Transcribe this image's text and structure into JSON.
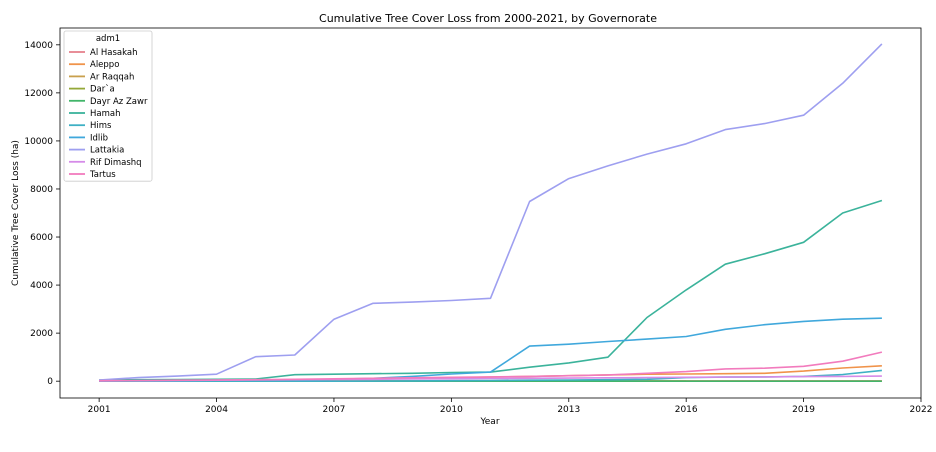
{
  "chart_data": {
    "type": "line",
    "title": "Cumulative Tree Cover Loss from 2000-2021, by Governorate",
    "xlabel": "Year",
    "ylabel": "Cumulative Tree Cover Loss (ha)",
    "xlim": [
      2000,
      2022
    ],
    "ylim": [
      -700,
      14700
    ],
    "xticks": [
      2001,
      2004,
      2007,
      2010,
      2013,
      2016,
      2019,
      2022
    ],
    "yticks": [
      0,
      2000,
      4000,
      6000,
      8000,
      10000,
      12000,
      14000
    ],
    "legend": {
      "title": "adm1",
      "position": "top-left"
    },
    "grid": false,
    "series": [
      {
        "name": "Al Hasakah",
        "color": "#e6818d",
        "x": [
          2001,
          2002,
          2003,
          2004,
          2005,
          2006,
          2007,
          2008,
          2009,
          2010,
          2011,
          2012,
          2013,
          2014,
          2015,
          2016,
          2017,
          2018,
          2019,
          2020,
          2021
        ],
        "y": [
          0,
          0,
          0,
          0,
          0,
          5,
          5,
          10,
          10,
          10,
          10,
          10,
          10,
          10,
          10,
          10,
          10,
          10,
          10,
          10,
          10
        ]
      },
      {
        "name": "Aleppo",
        "color": "#f0934a",
        "x": [
          2001,
          2002,
          2003,
          2004,
          2005,
          2006,
          2007,
          2008,
          2009,
          2010,
          2011,
          2012,
          2013,
          2014,
          2015,
          2016,
          2017,
          2018,
          2019,
          2020,
          2021
        ],
        "y": [
          5,
          10,
          15,
          20,
          30,
          50,
          70,
          90,
          110,
          140,
          170,
          200,
          230,
          260,
          290,
          300,
          310,
          330,
          420,
          550,
          640
        ]
      },
      {
        "name": "Ar Raqqah",
        "color": "#c9a04d",
        "x": [
          2001,
          2002,
          2003,
          2004,
          2005,
          2006,
          2007,
          2008,
          2009,
          2010,
          2011,
          2012,
          2013,
          2014,
          2015,
          2016,
          2017,
          2018,
          2019,
          2020,
          2021
        ],
        "y": [
          0,
          0,
          0,
          0,
          0,
          0,
          0,
          0,
          0,
          0,
          0,
          5,
          5,
          5,
          5,
          5,
          5,
          5,
          5,
          5,
          5
        ]
      },
      {
        "name": "Dar`a",
        "color": "#94a838",
        "x": [
          2001,
          2002,
          2003,
          2004,
          2005,
          2006,
          2007,
          2008,
          2009,
          2010,
          2011,
          2012,
          2013,
          2014,
          2015,
          2016
        ],
        "y": [
          0,
          0,
          0,
          0,
          0,
          0,
          0,
          0,
          0,
          0,
          0,
          0,
          0,
          0,
          0,
          0
        ]
      },
      {
        "name": "Dayr Az Zawr",
        "color": "#42b56a",
        "x": [
          2001,
          2002,
          2003,
          2004,
          2005,
          2006,
          2007,
          2008,
          2009,
          2010,
          2011,
          2012,
          2013,
          2014,
          2015,
          2016,
          2017,
          2018,
          2019,
          2020,
          2021
        ],
        "y": [
          0,
          0,
          0,
          0,
          0,
          0,
          0,
          0,
          0,
          0,
          0,
          0,
          0,
          0,
          0,
          0,
          0,
          0,
          0,
          0,
          0
        ]
      },
      {
        "name": "Hamah",
        "color": "#3bb39b",
        "x": [
          2001,
          2002,
          2003,
          2004,
          2005,
          2006,
          2007,
          2008,
          2009,
          2010,
          2011,
          2012,
          2013,
          2014,
          2015,
          2016,
          2017,
          2018,
          2019,
          2020,
          2021
        ],
        "y": [
          50,
          60,
          70,
          80,
          90,
          270,
          290,
          310,
          330,
          360,
          380,
          580,
          760,
          1000,
          2650,
          3800,
          4870,
          5300,
          5780,
          7000,
          7520
        ]
      },
      {
        "name": "Hims",
        "color": "#3eb0c4",
        "x": [
          2001,
          2002,
          2003,
          2004,
          2005,
          2006,
          2007,
          2008,
          2009,
          2010,
          2011,
          2012,
          2013,
          2014,
          2015,
          2016,
          2017,
          2018,
          2019,
          2020,
          2021
        ],
        "y": [
          0,
          0,
          0,
          0,
          0,
          0,
          0,
          5,
          10,
          20,
          30,
          40,
          50,
          60,
          80,
          150,
          170,
          180,
          200,
          280,
          450
        ]
      },
      {
        "name": "Idlib",
        "color": "#40a8dc",
        "x": [
          2001,
          2002,
          2003,
          2004,
          2005,
          2006,
          2007,
          2008,
          2009,
          2010,
          2011,
          2012,
          2013,
          2014,
          2015,
          2016,
          2017,
          2018,
          2019,
          2020,
          2021
        ],
        "y": [
          10,
          20,
          30,
          40,
          50,
          60,
          80,
          120,
          200,
          300,
          380,
          1460,
          1540,
          1650,
          1750,
          1860,
          2160,
          2350,
          2490,
          2580,
          2620
        ]
      },
      {
        "name": "Lattakia",
        "color": "#9e9ff0",
        "x": [
          2001,
          2002,
          2003,
          2004,
          2005,
          2006,
          2007,
          2008,
          2009,
          2010,
          2011,
          2012,
          2013,
          2014,
          2015,
          2016,
          2017,
          2018,
          2019,
          2020,
          2021
        ],
        "y": [
          50,
          150,
          210,
          290,
          1020,
          1090,
          2580,
          3240,
          3290,
          3360,
          3450,
          7480,
          8430,
          8960,
          9450,
          9880,
          10470,
          10720,
          11070,
          12400,
          14040
        ]
      },
      {
        "name": "Rif Dimashq",
        "color": "#d58be8",
        "x": [
          2001,
          2002,
          2003,
          2004,
          2005,
          2006,
          2007,
          2008,
          2009,
          2010,
          2011,
          2012,
          2013,
          2014,
          2015,
          2016,
          2017,
          2018,
          2019,
          2020,
          2021
        ],
        "y": [
          10,
          20,
          30,
          40,
          50,
          60,
          70,
          80,
          90,
          100,
          110,
          120,
          130,
          140,
          150,
          160,
          170,
          180,
          190,
          200,
          210
        ]
      },
      {
        "name": "Tartus",
        "color": "#f27bbd",
        "x": [
          2001,
          2002,
          2003,
          2004,
          2005,
          2006,
          2007,
          2008,
          2009,
          2010,
          2011,
          2012,
          2013,
          2014,
          2015,
          2016,
          2017,
          2018,
          2019,
          2020,
          2021
        ],
        "y": [
          20,
          30,
          40,
          50,
          60,
          80,
          100,
          120,
          140,
          160,
          180,
          200,
          230,
          260,
          330,
          400,
          510,
          540,
          620,
          830,
          1210
        ]
      }
    ]
  }
}
